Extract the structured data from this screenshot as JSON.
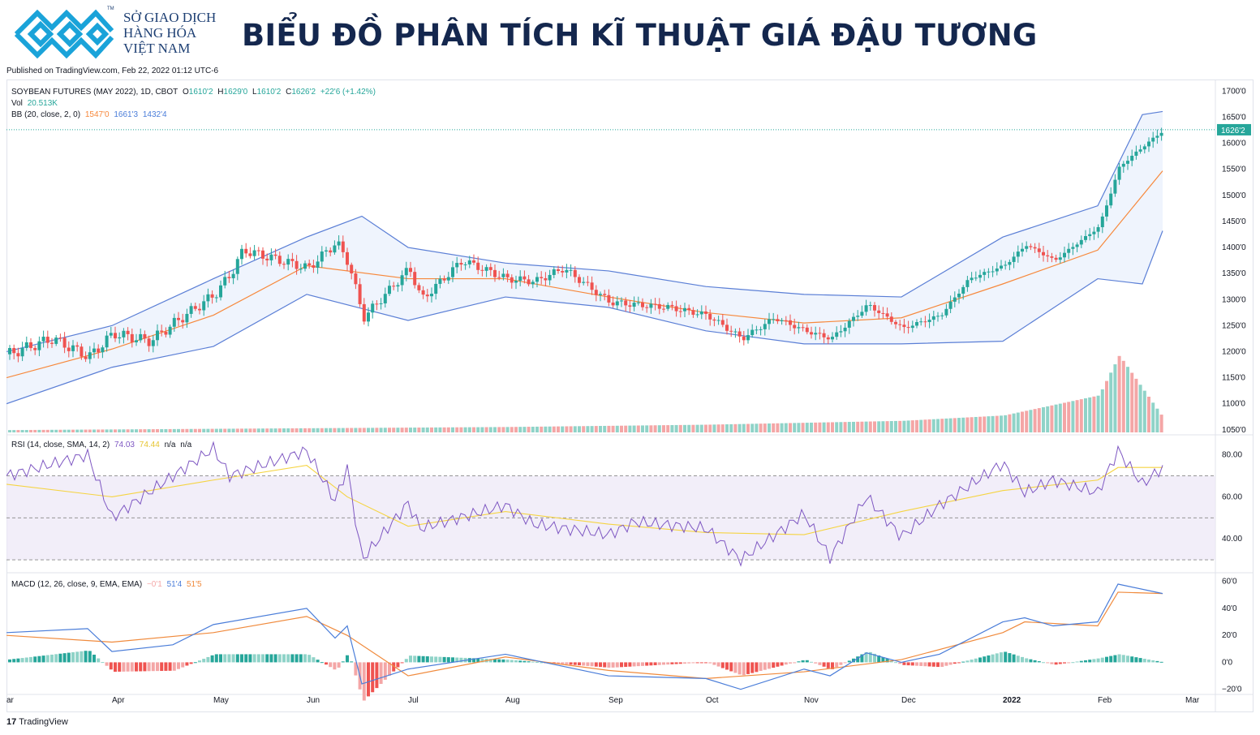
{
  "header": {
    "org_line1": "SỞ GIAO DỊCH",
    "org_line2": "HÀNG HÓA",
    "org_line3": "VIỆT NAM",
    "tm": "TM",
    "title": "BIỂU ĐỒ PHÂN TÍCH KĨ THUẬT GIÁ ĐẬU TƯƠNG",
    "published": "Published on TradingView.com, Feb 22, 2022 01:12 UTC-6",
    "brand_color": "#1aa3d9"
  },
  "legend": {
    "symbol": "SOYBEAN FUTURES (MAY 2022), 1D, CBOT",
    "o_label": "O",
    "o_val": "1610'2",
    "h_label": "H",
    "h_val": "1629'0",
    "l_label": "L",
    "l_val": "1610'2",
    "c_label": "C",
    "c_val": "1626'2",
    "change": "+22'6 (+1.42%)",
    "vol_label": "Vol",
    "vol_val": "20.513K",
    "bb_label": "BB (20, close, 2, 0)",
    "bb_basis": "1547'0",
    "bb_upper": "1661'3",
    "bb_lower": "1432'4",
    "rsi_label": "RSI (14, close, SMA, 14, 2)",
    "rsi_val": "74.03",
    "rsi_ma": "74.44",
    "rsi_na1": "n/a",
    "rsi_na2": "n/a",
    "macd_label": "MACD (12, 26, close, 9, EMA, EMA)",
    "macd_hist": "−0'1",
    "macd_line": "51'4",
    "macd_signal": "51'5"
  },
  "footer": {
    "logo": "17",
    "name": "TradingView"
  },
  "colors": {
    "up": "#26a69a",
    "down": "#ef5350",
    "bb_band": "#5b7fd6",
    "bb_basis": "#f7883b",
    "rsi": "#7e57c2",
    "rsi_ma": "#f5d442",
    "macd": "#4a7dd9",
    "signal": "#f08a3c",
    "last_price_bg": "#26a69a"
  },
  "chart_data": [
    {
      "type": "candlestick",
      "title": "SOYBEAN FUTURES (MAY 2022), 1D, CBOT",
      "y_ticks": [
        "1700'0",
        "1650'0",
        "1600'0",
        "1550'0",
        "1500'0",
        "1450'0",
        "1400'0",
        "1350'0",
        "1300'0",
        "1250'0",
        "1200'0",
        "1150'0",
        "1100'0",
        "1050'0"
      ],
      "ylim": [
        1045,
        1710
      ],
      "x_labels": [
        "ar",
        "Apr",
        "May",
        "Jun",
        "Jul",
        "Aug",
        "Sep",
        "Oct",
        "Nov",
        "Dec",
        "2022",
        "Feb",
        "Mar"
      ],
      "last_price": "1626'2",
      "close_path": [
        {
          "x": "Mar",
          "y": 1195
        },
        {
          "x": "Mar-end",
          "y": 1225
        },
        {
          "x": "Mar-late",
          "y": 1190
        },
        {
          "x": "Apr",
          "y": 1235
        },
        {
          "x": "Apr-mid",
          "y": 1220
        },
        {
          "x": "Apr-late",
          "y": 1255
        },
        {
          "x": "May",
          "y": 1310
        },
        {
          "x": "May-mid",
          "y": 1350
        },
        {
          "x": "May-late",
          "y": 1395
        },
        {
          "x": "Jun",
          "y": 1360
        },
        {
          "x": "Jun-mid",
          "y": 1410
        },
        {
          "x": "Jun-late",
          "y": 1370
        },
        {
          "x": "Jun-end",
          "y": 1265
        },
        {
          "x": "Jul",
          "y": 1360
        },
        {
          "x": "Jul-mid",
          "y": 1300
        },
        {
          "x": "Jul-late",
          "y": 1375
        },
        {
          "x": "Aug",
          "y": 1340
        },
        {
          "x": "Aug-mid",
          "y": 1335
        },
        {
          "x": "Aug-late",
          "y": 1360
        },
        {
          "x": "Sep",
          "y": 1295
        },
        {
          "x": "Sep-mid",
          "y": 1290
        },
        {
          "x": "Sep-late",
          "y": 1285
        },
        {
          "x": "Oct",
          "y": 1270
        },
        {
          "x": "Oct-mid",
          "y": 1225
        },
        {
          "x": "Oct-late",
          "y": 1265
        },
        {
          "x": "Nov",
          "y": 1240
        },
        {
          "x": "Nov-mid",
          "y": 1225
        },
        {
          "x": "Nov-late",
          "y": 1290
        },
        {
          "x": "Dec",
          "y": 1245
        },
        {
          "x": "Dec-mid",
          "y": 1270
        },
        {
          "x": "Dec-late",
          "y": 1340
        },
        {
          "x": "2022",
          "y": 1365
        },
        {
          "x": "Jan-mid",
          "y": 1405
        },
        {
          "x": "Jan-late",
          "y": 1375
        },
        {
          "x": "Feb",
          "y": 1440
        },
        {
          "x": "Feb-mid",
          "y": 1555
        },
        {
          "x": "Feb-late",
          "y": 1595
        },
        {
          "x": "Feb-22",
          "y": 1626
        }
      ],
      "bb_upper": [
        {
          "x": "Mar",
          "y": 1200
        },
        {
          "x": "Apr",
          "y": 1250
        },
        {
          "x": "May",
          "y": 1340
        },
        {
          "x": "Jun",
          "y": 1420
        },
        {
          "x": "Jun-end",
          "y": 1460
        },
        {
          "x": "Jul",
          "y": 1400
        },
        {
          "x": "Aug",
          "y": 1370
        },
        {
          "x": "Sep",
          "y": 1355
        },
        {
          "x": "Oct",
          "y": 1325
        },
        {
          "x": "Nov",
          "y": 1310
        },
        {
          "x": "Dec",
          "y": 1305
        },
        {
          "x": "2022",
          "y": 1420
        },
        {
          "x": "Feb",
          "y": 1480
        },
        {
          "x": "Feb-late",
          "y": 1655
        },
        {
          "x": "Feb-22",
          "y": 1661
        }
      ],
      "bb_basis": [
        {
          "x": "Mar",
          "y": 1150
        },
        {
          "x": "Apr",
          "y": 1205
        },
        {
          "x": "May",
          "y": 1270
        },
        {
          "x": "Jun",
          "y": 1365
        },
        {
          "x": "Jul",
          "y": 1340
        },
        {
          "x": "Aug",
          "y": 1340
        },
        {
          "x": "Sep",
          "y": 1305
        },
        {
          "x": "Oct",
          "y": 1275
        },
        {
          "x": "Nov",
          "y": 1255
        },
        {
          "x": "Dec",
          "y": 1265
        },
        {
          "x": "2022",
          "y": 1330
        },
        {
          "x": "Feb",
          "y": 1395
        },
        {
          "x": "Feb-22",
          "y": 1547
        }
      ],
      "bb_lower": [
        {
          "x": "Mar",
          "y": 1100
        },
        {
          "x": "Apr",
          "y": 1170
        },
        {
          "x": "May",
          "y": 1210
        },
        {
          "x": "Jun",
          "y": 1310
        },
        {
          "x": "Jul",
          "y": 1260
        },
        {
          "x": "Aug",
          "y": 1305
        },
        {
          "x": "Sep",
          "y": 1285
        },
        {
          "x": "Oct",
          "y": 1240
        },
        {
          "x": "Nov",
          "y": 1215
        },
        {
          "x": "Dec",
          "y": 1215
        },
        {
          "x": "2022",
          "y": 1220
        },
        {
          "x": "Feb",
          "y": 1340
        },
        {
          "x": "Feb-late",
          "y": 1330
        },
        {
          "x": "Feb-22",
          "y": 1432
        }
      ],
      "volume_trend": [
        {
          "x": "Mar",
          "y": 0.03
        },
        {
          "x": "Aug",
          "y": 0.07
        },
        {
          "x": "Oct",
          "y": 0.1
        },
        {
          "x": "Dec",
          "y": 0.15
        },
        {
          "x": "2022",
          "y": 0.22
        },
        {
          "x": "Feb",
          "y": 0.48
        },
        {
          "x": "Feb-mid",
          "y": 1.0
        },
        {
          "x": "Feb-22",
          "y": 0.18
        }
      ]
    },
    {
      "type": "line",
      "title": "RSI (14, close, SMA, 14, 2)",
      "y_ticks": [
        "80.00",
        "60.00",
        "40.00"
      ],
      "ylim": [
        25,
        88
      ],
      "bands": [
        70,
        50,
        30
      ],
      "rsi": [
        {
          "x": "Mar",
          "y": 70
        },
        {
          "x": "Mar-late",
          "y": 80
        },
        {
          "x": "Apr",
          "y": 50
        },
        {
          "x": "Apr-mid",
          "y": 62
        },
        {
          "x": "May",
          "y": 83
        },
        {
          "x": "May-mid",
          "y": 70
        },
        {
          "x": "Jun",
          "y": 82
        },
        {
          "x": "Jun-mid",
          "y": 58
        },
        {
          "x": "Jun-late",
          "y": 74
        },
        {
          "x": "Jun-end",
          "y": 30
        },
        {
          "x": "Jul",
          "y": 57
        },
        {
          "x": "Jul-mid",
          "y": 45
        },
        {
          "x": "Aug",
          "y": 56
        },
        {
          "x": "Aug-mid",
          "y": 47
        },
        {
          "x": "Sep",
          "y": 42
        },
        {
          "x": "Sep-mid",
          "y": 48
        },
        {
          "x": "Oct",
          "y": 45
        },
        {
          "x": "Oct-mid",
          "y": 30
        },
        {
          "x": "Nov",
          "y": 52
        },
        {
          "x": "Nov-mid",
          "y": 31
        },
        {
          "x": "Nov-late",
          "y": 60
        },
        {
          "x": "Dec",
          "y": 41
        },
        {
          "x": "Dec-mid",
          "y": 56
        },
        {
          "x": "2022",
          "y": 76
        },
        {
          "x": "Jan-mid",
          "y": 62
        },
        {
          "x": "Jan-late",
          "y": 68
        },
        {
          "x": "Feb",
          "y": 62
        },
        {
          "x": "Feb-mid",
          "y": 82
        },
        {
          "x": "Feb-late",
          "y": 66
        },
        {
          "x": "Feb-22",
          "y": 74
        }
      ],
      "rsi_ma": [
        {
          "x": "Mar",
          "y": 66
        },
        {
          "x": "Apr",
          "y": 60
        },
        {
          "x": "May",
          "y": 68
        },
        {
          "x": "Jun",
          "y": 75
        },
        {
          "x": "Jun-late",
          "y": 60
        },
        {
          "x": "Jul",
          "y": 46
        },
        {
          "x": "Aug",
          "y": 53
        },
        {
          "x": "Sep",
          "y": 47
        },
        {
          "x": "Oct",
          "y": 43
        },
        {
          "x": "Nov",
          "y": 42
        },
        {
          "x": "Dec",
          "y": 53
        },
        {
          "x": "2022",
          "y": 63
        },
        {
          "x": "Feb",
          "y": 68
        },
        {
          "x": "Feb-mid",
          "y": 74
        },
        {
          "x": "Feb-22",
          "y": 74
        }
      ]
    },
    {
      "type": "line",
      "title": "MACD (12, 26, close, 9, EMA, EMA)",
      "y_ticks": [
        "60'0",
        "40'0",
        "20'0",
        "0'0",
        "−20'0"
      ],
      "ylim": [
        -22,
        64
      ],
      "macd": [
        {
          "x": "Mar",
          "y": 22
        },
        {
          "x": "Mar-late",
          "y": 25
        },
        {
          "x": "Apr",
          "y": 8
        },
        {
          "x": "Apr-late",
          "y": 13
        },
        {
          "x": "May",
          "y": 28
        },
        {
          "x": "Jun",
          "y": 40
        },
        {
          "x": "Jun-mid",
          "y": 18
        },
        {
          "x": "Jun-late",
          "y": 27
        },
        {
          "x": "Jun-end",
          "y": -16
        },
        {
          "x": "Jul",
          "y": -5
        },
        {
          "x": "Aug",
          "y": 6
        },
        {
          "x": "Sep",
          "y": -10
        },
        {
          "x": "Oct",
          "y": -12
        },
        {
          "x": "Oct-mid",
          "y": -20
        },
        {
          "x": "Nov",
          "y": -5
        },
        {
          "x": "Nov-mid",
          "y": -10
        },
        {
          "x": "Nov-late",
          "y": 7
        },
        {
          "x": "Dec",
          "y": 0
        },
        {
          "x": "Dec-mid",
          "y": 6
        },
        {
          "x": "2022",
          "y": 30
        },
        {
          "x": "Jan-mid",
          "y": 33
        },
        {
          "x": "Jan-late",
          "y": 27
        },
        {
          "x": "Feb",
          "y": 30
        },
        {
          "x": "Feb-mid",
          "y": 58
        },
        {
          "x": "Feb-22",
          "y": 51
        }
      ],
      "signal": [
        {
          "x": "Mar",
          "y": 20
        },
        {
          "x": "Apr",
          "y": 15
        },
        {
          "x": "May",
          "y": 22
        },
        {
          "x": "Jun",
          "y": 34
        },
        {
          "x": "Jun-late",
          "y": 20
        },
        {
          "x": "Jul",
          "y": -10
        },
        {
          "x": "Aug",
          "y": 4
        },
        {
          "x": "Sep",
          "y": -6
        },
        {
          "x": "Oct",
          "y": -12
        },
        {
          "x": "Nov",
          "y": -7
        },
        {
          "x": "Dec",
          "y": 2
        },
        {
          "x": "2022",
          "y": 22
        },
        {
          "x": "Jan-mid",
          "y": 30
        },
        {
          "x": "Feb",
          "y": 27
        },
        {
          "x": "Feb-mid",
          "y": 52
        },
        {
          "x": "Feb-22",
          "y": 51
        }
      ]
    }
  ]
}
